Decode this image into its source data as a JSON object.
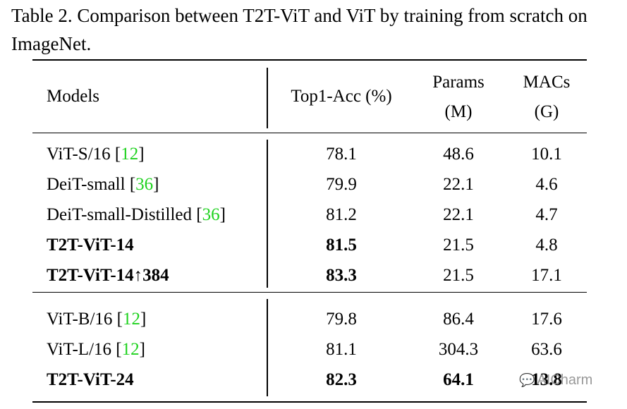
{
  "caption": "Table 2. Comparison between T2T-ViT and ViT by training from scratch on ImageNet.",
  "header": {
    "models": "Models",
    "acc": "Top1-Acc (%)",
    "params_line1": "Params",
    "params_line2": "(M)",
    "macs_line1": "MACs",
    "macs_line2": "(G)"
  },
  "group1": [
    {
      "model": "ViT-S/16 ",
      "cite": "12",
      "acc": "78.1",
      "params": "48.6",
      "macs": "10.1"
    },
    {
      "model": "DeiT-small ",
      "cite": "36",
      "acc": "79.9",
      "params": "22.1",
      "macs": "4.6"
    },
    {
      "model": "DeiT-small-Distilled ",
      "cite": "36",
      "acc": "81.2",
      "params": "22.1",
      "macs": "4.7"
    },
    {
      "model": "T2T-ViT-14",
      "acc": "81.5",
      "params": "21.5",
      "macs": "4.8"
    },
    {
      "model": "T2T-ViT-14↑384",
      "acc": "83.3",
      "params": "21.5",
      "macs": "17.1"
    }
  ],
  "group2": [
    {
      "model": "ViT-B/16 ",
      "cite": "12",
      "acc": "79.8",
      "params": "86.4",
      "macs": "17.6"
    },
    {
      "model": "ViT-L/16 ",
      "cite": "12",
      "acc": "81.1",
      "params": "304.3",
      "macs": "63.6"
    },
    {
      "model": "T2T-ViT-24",
      "acc": "82.3",
      "params": "64.1",
      "macs": "13.8"
    }
  ],
  "watermark": "AICharm",
  "colors": {
    "cite": "#1fd21f",
    "text": "#000000"
  }
}
